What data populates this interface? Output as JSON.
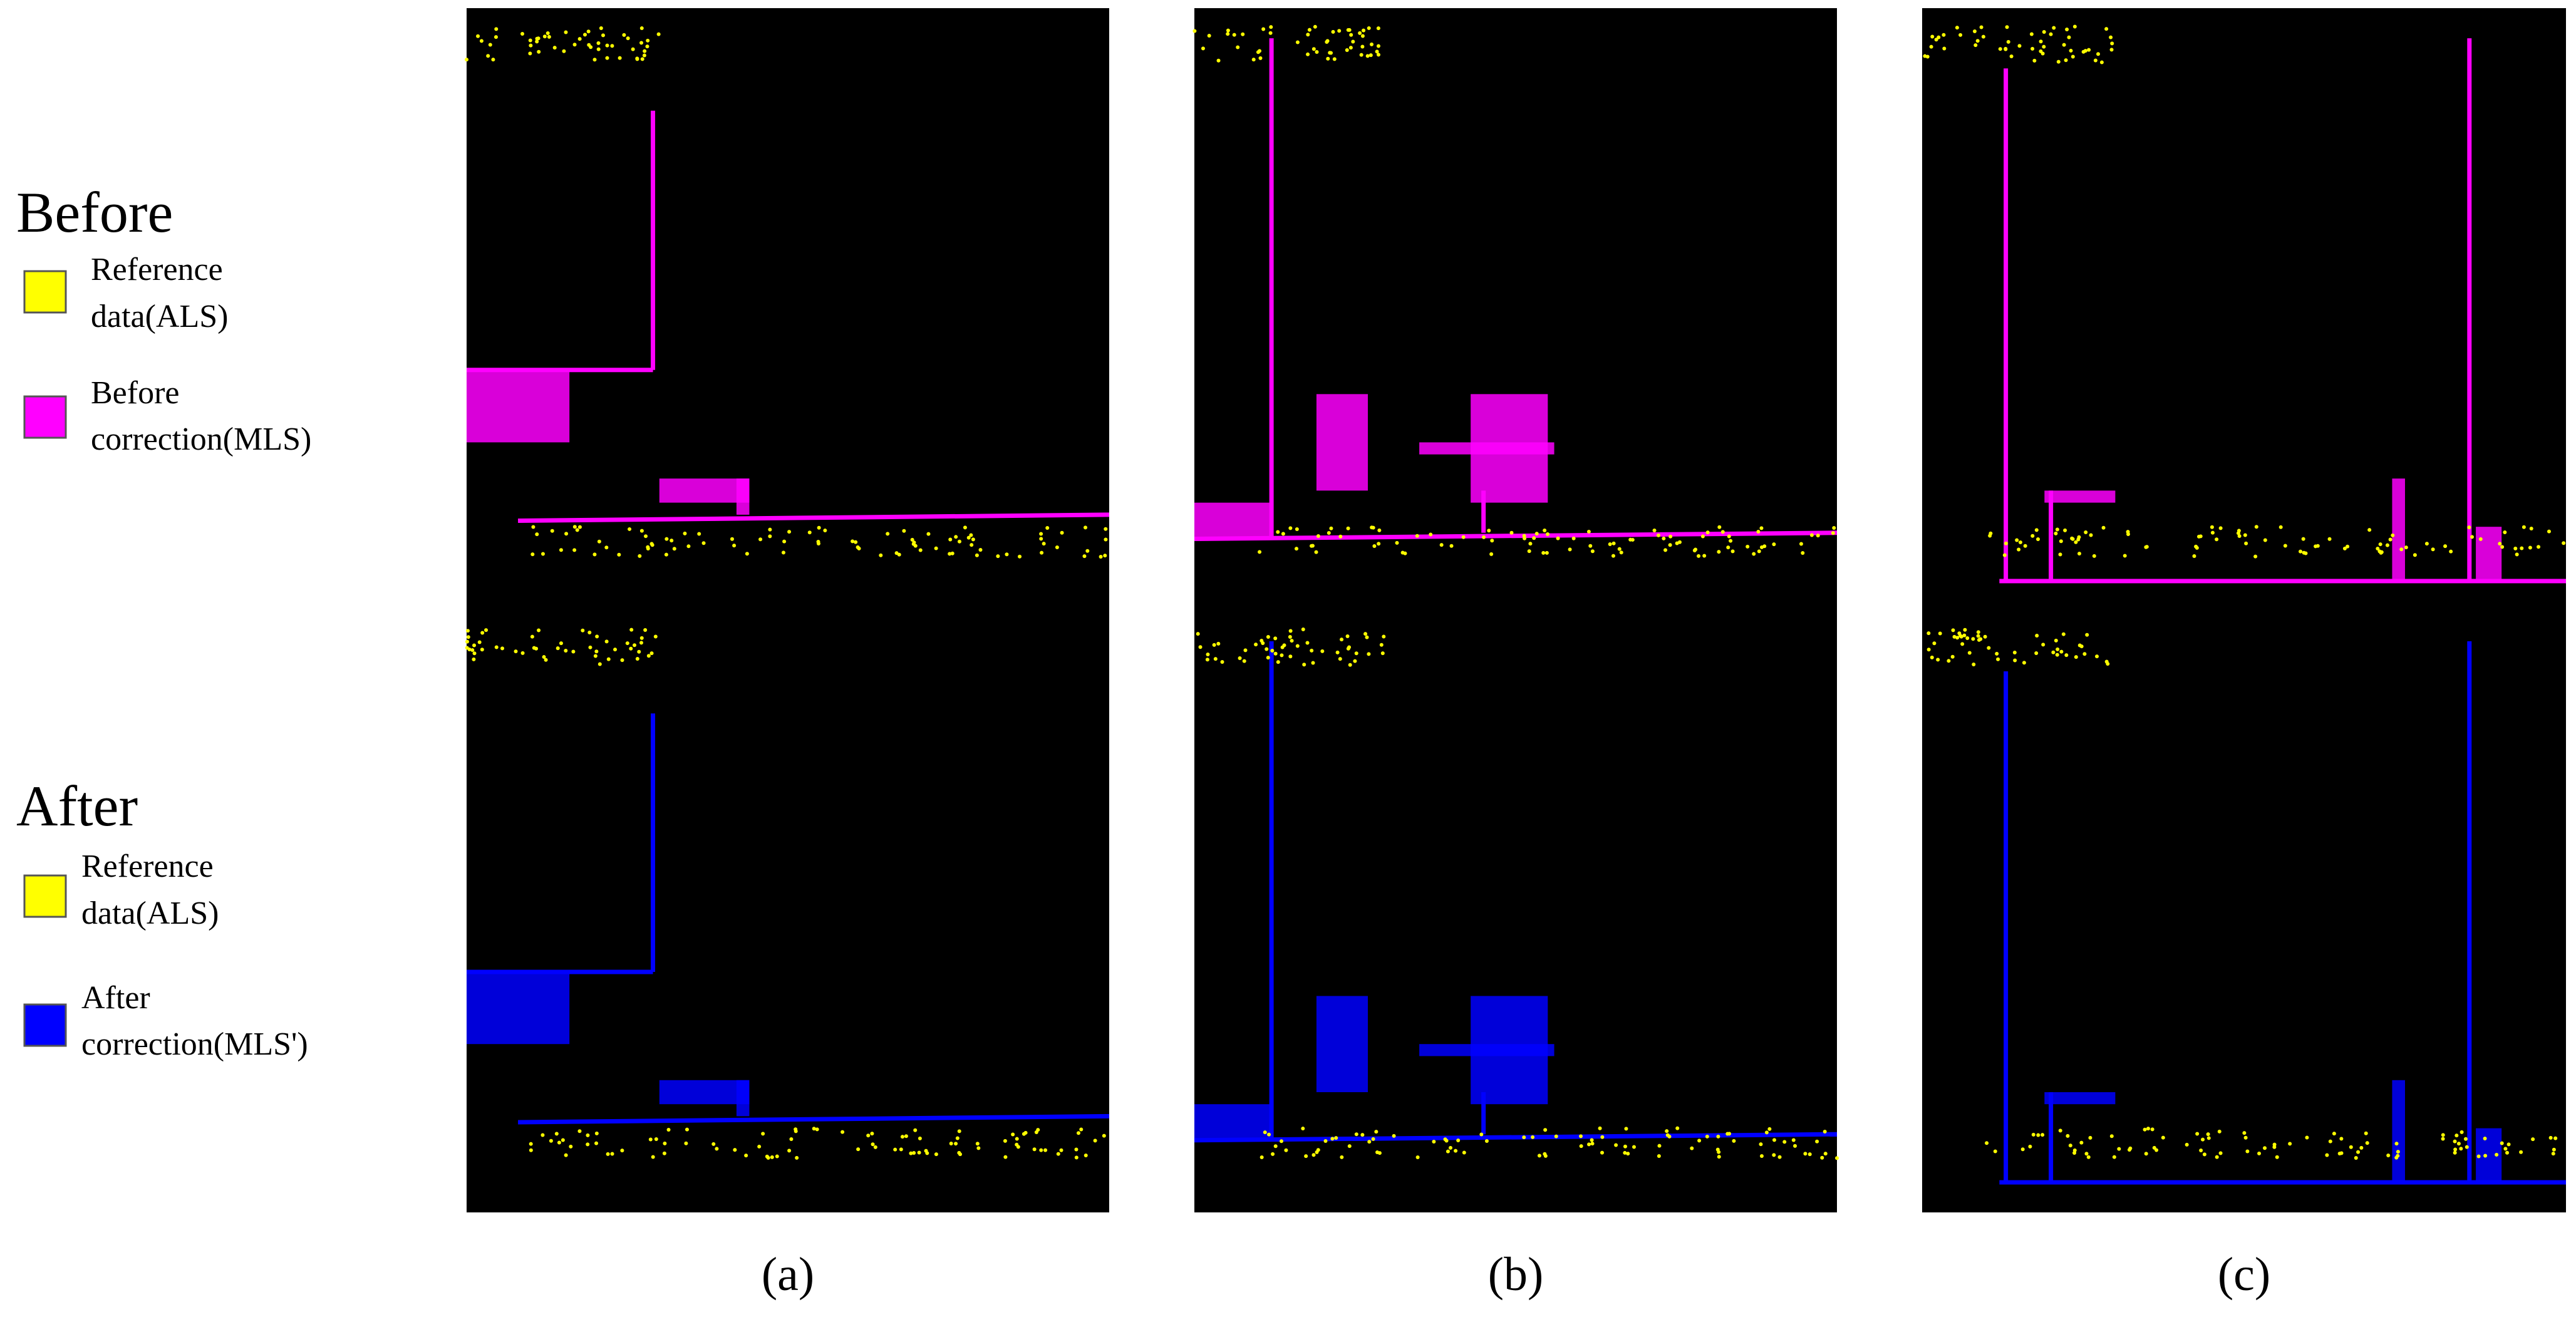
{
  "legends": [
    {
      "title": "Before",
      "items": [
        {
          "lines": [
            "Reference",
            "data(ALS)"
          ],
          "color": "#ffff00"
        },
        {
          "lines": [
            "Before",
            "correction(MLS)"
          ],
          "color": "#ff00ff"
        }
      ]
    },
    {
      "title": "After",
      "items": [
        {
          "lines": [
            "Reference",
            "data(ALS)"
          ],
          "color": "#ffff00"
        },
        {
          "lines": [
            "After",
            "correction(MLS')"
          ],
          "color": "#0000ff"
        }
      ]
    }
  ],
  "panels": [
    {
      "label": "(a)"
    },
    {
      "label": "(b)"
    },
    {
      "label": "(c)"
    }
  ]
}
